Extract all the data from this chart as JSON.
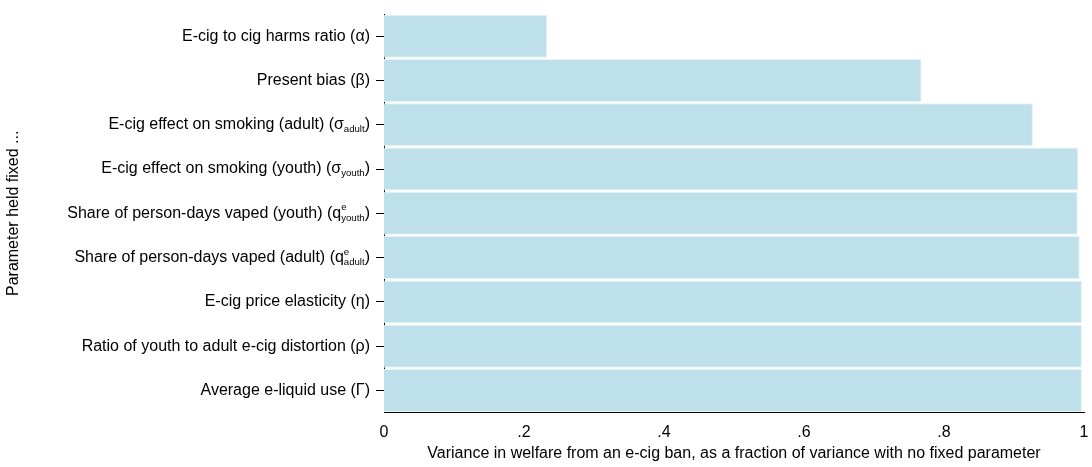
{
  "chart_data": {
    "type": "bar",
    "orientation": "horizontal",
    "categories": [
      "E-cig to cig harms ratio (α)",
      "Present bias (β)",
      "E-cig effect on smoking (adult) (σ$_{adult}$)",
      "E-cig effect on smoking (youth) (σ$_{youth}$)",
      "Share of person-days vaped (youth) (q$^{e}$$_{youth}$)",
      "Share of person-days vaped (adult) (q$^{e}$$_{adult}$)",
      "E-cig price elasticity (η)",
      "Ratio of youth to adult e-cig distortion (ρ)",
      "Average e-liquid use (Γ)"
    ],
    "values": [
      0.233,
      0.768,
      0.927,
      0.992,
      0.991,
      0.994,
      0.997,
      0.997,
      0.997
    ],
    "color": "#bee0ea",
    "xlim": [
      0,
      1
    ],
    "xticks": [
      0,
      {
        "value": 0.2,
        "label": ".2"
      },
      {
        "value": 0.4,
        "label": ".4"
      },
      {
        "value": 0.6,
        "label": ".6"
      },
      {
        "value": 0.8,
        "label": ".8"
      },
      1
    ],
    "xlabel": "Variance in welfare from an e-cig ban, as a fraction of variance with no fixed parameter",
    "ylabel": "Parameter held fixed ...",
    "grid": false,
    "legend": false
  }
}
